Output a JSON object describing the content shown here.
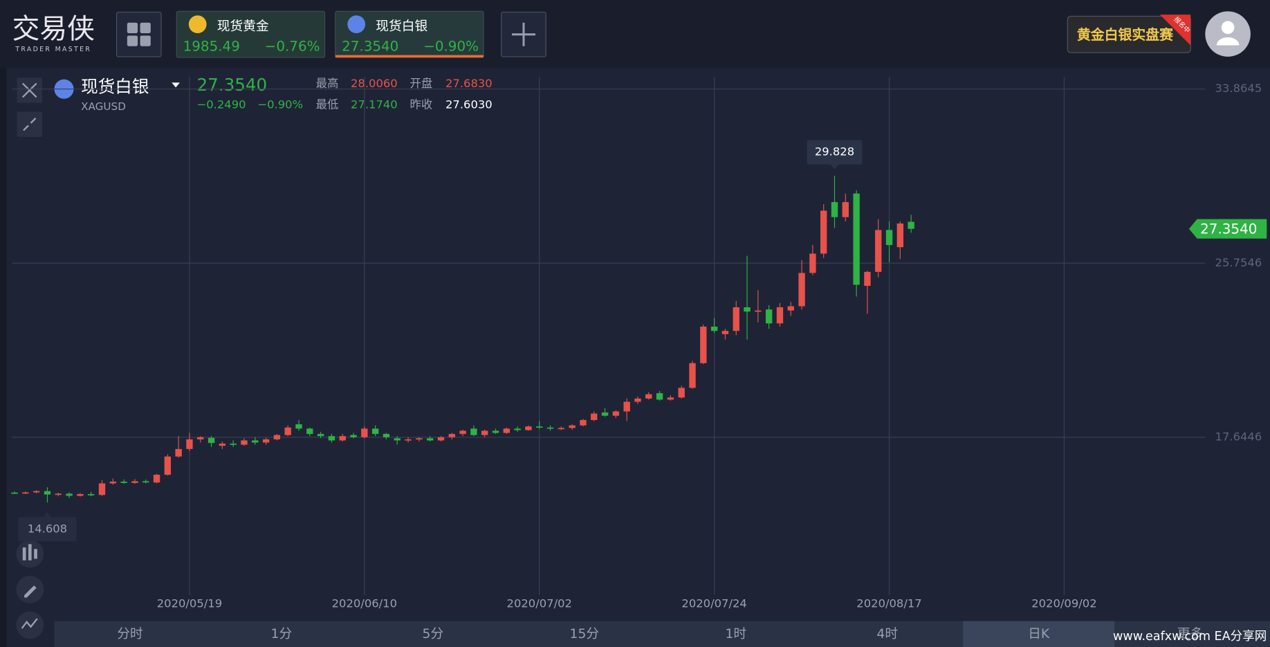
{
  "header": {
    "logo": "交易侠",
    "logo_sub": "TRADER MASTER",
    "tabs": [
      {
        "name": "现货黄金",
        "price": "1985.49",
        "change": "−0.76%"
      },
      {
        "name": "现货白银",
        "price": "27.3540",
        "change": "−0.90%"
      }
    ],
    "banner": "黄金白银实盘赛",
    "banner_badge": "报名中"
  },
  "quote": {
    "name": "现货白银",
    "symbol": "XAGUSD",
    "price": "27.3540",
    "change": "−0.2490",
    "change_pct": "−0.90%",
    "high_label": "最高",
    "high": "28.0060",
    "open_label": "开盘",
    "open": "27.6830",
    "low_label": "最低",
    "low": "27.1740",
    "prev_close_label": "昨收",
    "prev_close": "27.6030"
  },
  "chart_data": {
    "type": "candlestick",
    "up_color": "#e8524a",
    "down_color": "#2fb344",
    "grid": true,
    "open": [
      15.07,
      15.04,
      15.08,
      15.14,
      14.98,
      15.02,
      14.92,
      15.0,
      14.96,
      15.5,
      15.58,
      15.52,
      15.6,
      15.54,
      15.9,
      16.75,
      17.1,
      17.55,
      17.62,
      17.25,
      17.35,
      17.3,
      17.5,
      17.4,
      17.55,
      17.75,
      18.25,
      18.05,
      17.8,
      17.7,
      17.5,
      17.75,
      17.65,
      18.05,
      17.8,
      17.6,
      17.5,
      17.55,
      17.6,
      17.5,
      17.65,
      17.8,
      18.05,
      17.75,
      17.95,
      17.85,
      18.05,
      17.98,
      18.15,
      18.1,
      18.05,
      18.08,
      18.2,
      18.45,
      18.8,
      18.65,
      18.85,
      19.3,
      19.45,
      19.7,
      19.4,
      19.5,
      19.95,
      21.1,
      22.8,
      22.45,
      22.6,
      23.7,
      23.5,
      23.6,
      22.95,
      23.55,
      23.75,
      25.3,
      26.2,
      28.6,
      27.9,
      29.0,
      24.7,
      25.35,
      27.3,
      26.5,
      27.683
    ],
    "high": [
      15.12,
      15.12,
      15.18,
      15.32,
      15.06,
      15.08,
      15.05,
      15.1,
      15.65,
      15.72,
      15.68,
      15.7,
      15.68,
      15.95,
      16.85,
      17.7,
      17.85,
      17.7,
      17.7,
      17.45,
      17.5,
      17.6,
      17.65,
      17.62,
      17.8,
      18.2,
      18.45,
      18.1,
      17.9,
      17.8,
      17.8,
      17.85,
      18.15,
      18.2,
      17.85,
      17.7,
      17.65,
      17.65,
      17.7,
      17.7,
      17.85,
      18.0,
      18.2,
      18.0,
      18.05,
      18.1,
      18.15,
      18.2,
      18.4,
      18.2,
      18.15,
      18.25,
      18.5,
      18.85,
      19.0,
      18.9,
      19.45,
      19.55,
      19.75,
      19.8,
      19.6,
      20.05,
      21.2,
      22.9,
      23.2,
      22.7,
      24.0,
      26.1,
      24.5,
      23.8,
      23.9,
      23.95,
      25.9,
      26.6,
      28.5,
      29.828,
      29.0,
      29.15,
      25.4,
      27.8,
      27.7,
      27.7,
      28.006
    ],
    "low": [
      15.02,
      15.0,
      15.04,
      14.608,
      14.9,
      14.82,
      14.88,
      14.9,
      14.92,
      15.44,
      15.48,
      15.48,
      15.5,
      15.5,
      15.86,
      16.7,
      17.0,
      17.4,
      17.2,
      17.1,
      17.2,
      17.25,
      17.3,
      17.3,
      17.5,
      17.7,
      17.95,
      17.7,
      17.6,
      17.4,
      17.45,
      17.6,
      17.6,
      17.7,
      17.55,
      17.3,
      17.4,
      17.45,
      17.45,
      17.45,
      17.55,
      17.7,
      17.7,
      17.65,
      17.8,
      17.8,
      17.9,
      17.95,
      18.05,
      17.95,
      17.98,
      18.0,
      18.15,
      18.4,
      18.6,
      18.55,
      18.4,
      19.2,
      19.4,
      19.35,
      19.35,
      19.45,
      19.9,
      21.05,
      22.5,
      22.2,
      22.4,
      22.2,
      23.0,
      22.7,
      22.8,
      23.3,
      23.6,
      25.2,
      26.0,
      27.4,
      27.7,
      24.2,
      23.4,
      25.1,
      25.8,
      25.95,
      27.174
    ],
    "close": [
      15.04,
      15.08,
      15.14,
      14.98,
      15.02,
      14.92,
      15.0,
      14.96,
      15.5,
      15.58,
      15.52,
      15.6,
      15.54,
      15.9,
      16.75,
      17.1,
      17.55,
      17.65,
      17.38,
      17.35,
      17.3,
      17.5,
      17.4,
      17.55,
      17.75,
      18.1,
      18.05,
      17.8,
      17.7,
      17.5,
      17.7,
      17.65,
      18.05,
      17.8,
      17.65,
      17.5,
      17.55,
      17.6,
      17.5,
      17.65,
      17.8,
      17.95,
      17.75,
      17.95,
      17.85,
      18.05,
      17.98,
      18.15,
      18.1,
      18.05,
      18.08,
      18.2,
      18.45,
      18.75,
      18.65,
      18.85,
      19.3,
      19.45,
      19.65,
      19.4,
      19.5,
      19.95,
      21.1,
      22.8,
      22.6,
      22.6,
      23.7,
      23.5,
      23.55,
      22.95,
      23.7,
      23.75,
      25.3,
      26.2,
      28.2,
      27.9,
      28.6,
      24.75,
      25.35,
      27.3,
      26.6,
      27.603,
      27.354
    ],
    "xlim": [
      -0.22,
      108.9
    ],
    "xticks": [
      {
        "value": 16,
        "label": "2020/05/19"
      },
      {
        "value": 32,
        "label": "2020/06/10"
      },
      {
        "value": 48,
        "label": "2020/07/02"
      },
      {
        "value": 64,
        "label": "2020/07/24"
      },
      {
        "value": 80,
        "label": "2020/08/17"
      },
      {
        "value": 96,
        "label": "2020/09/02"
      }
    ],
    "ylim": [
      9.16,
      34.43
    ],
    "yticks": [
      17.6446,
      25.7546,
      33.8645
    ],
    "max_marker": 29.828,
    "min_marker": 14.608,
    "last_price": {
      "value": 27.354,
      "label": "27.3540"
    }
  },
  "timeframes": [
    "分时",
    "1分",
    "5分",
    "15分",
    "1时",
    "4时",
    "日K",
    "更多"
  ],
  "watermark": "www.eafxw.com  EA分享网"
}
